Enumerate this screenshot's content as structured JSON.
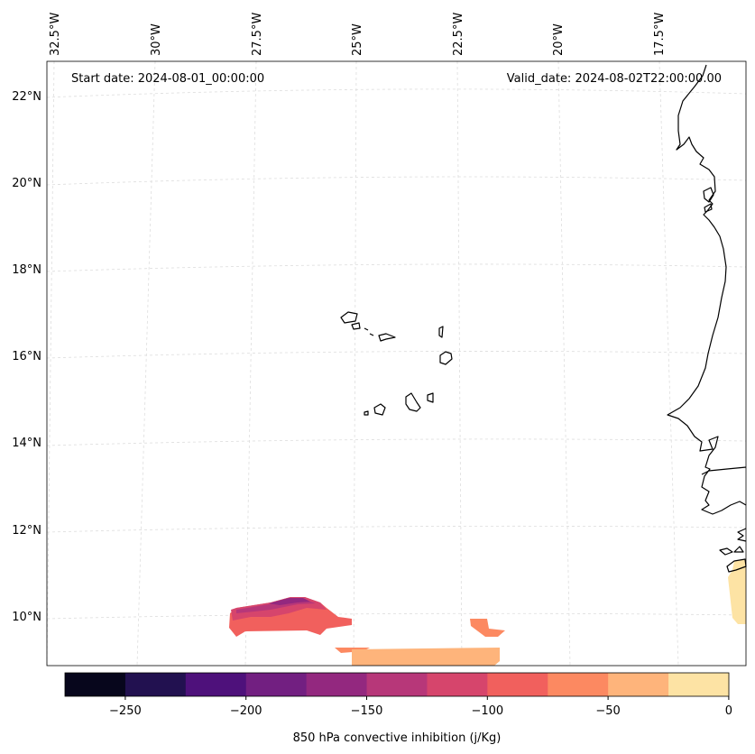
{
  "map": {
    "start_date": "Start date: 2024-08-01_00:00:00",
    "valid_date": "Valid_date: 2024-08-02T22:00:00.00",
    "lon_labels": [
      "32.5°W",
      "30°W",
      "27.5°W",
      "25°W",
      "22.5°W",
      "20°W",
      "17.5°W"
    ],
    "lat_labels": [
      "22°N",
      "20°N",
      "18°N",
      "16°N",
      "14°N",
      "12°N",
      "10°N"
    ],
    "colorbar_label": "850 hPa convective inhibition (j/Kg)",
    "colorbar_ticks": [
      "−250",
      "−200",
      "−150",
      "−100",
      "−50",
      "0"
    ],
    "colorbar_colors": [
      "#07061c",
      "#221150",
      "#4e117b",
      "#721f81",
      "#93287f",
      "#b73779",
      "#d6456c",
      "#f1605d",
      "#fc8961",
      "#feb47b",
      "#fde3a4"
    ],
    "coastline_color": "#000000",
    "grid_color": "#dddddd"
  }
}
